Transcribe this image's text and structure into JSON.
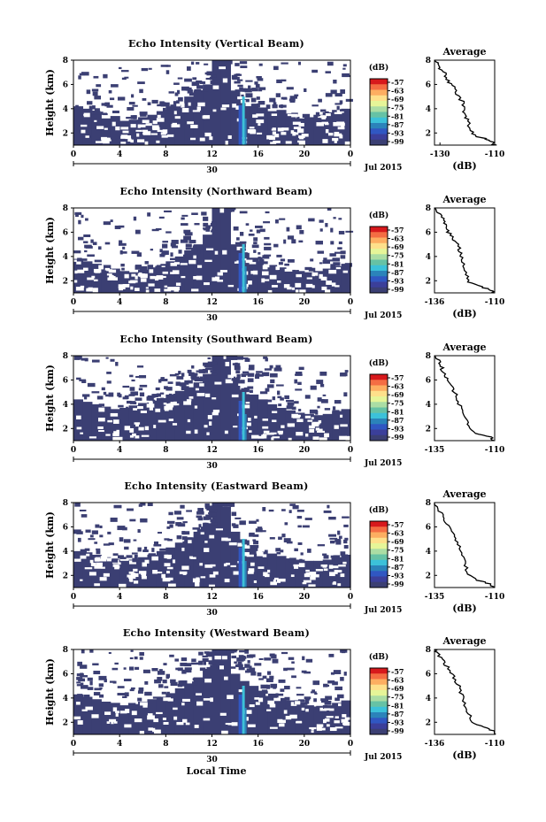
{
  "chart_data": [
    {
      "type": "heatmap",
      "title": "Echo Intensity (Vertical Beam)",
      "ylabel": "Height (km)",
      "x_ticks": [
        "0",
        "4",
        "8",
        "12",
        "16",
        "20",
        "0"
      ],
      "y_ticks": [
        "2",
        "4",
        "6",
        "8"
      ],
      "date_tick": "30",
      "date_label": "Jul 2015",
      "ylim": [
        1,
        8
      ],
      "colorbar": {
        "label": "(dB)",
        "ticks": [
          "-57",
          "-63",
          "-69",
          "-75",
          "-81",
          "-87",
          "-93",
          "-99"
        ],
        "range": [
          -99,
          -57
        ]
      },
      "average": {
        "title": "Average",
        "xlabel": "(dB)",
        "x_ticks": [
          "-130",
          "-110"
        ],
        "y_ticks": [
          "2",
          "4",
          "6",
          "8"
        ],
        "xlim": [
          -132,
          -110
        ],
        "ylim": [
          1,
          8
        ],
        "profile": [
          [
            -110,
            1.0
          ],
          [
            -111,
            1.3
          ],
          [
            -113,
            1.5
          ],
          [
            -117,
            1.7
          ],
          [
            -119,
            2.2
          ],
          [
            -120,
            3.0
          ],
          [
            -121,
            3.5
          ],
          [
            -121,
            4.0
          ],
          [
            -122,
            4.6
          ],
          [
            -124,
            5.2
          ],
          [
            -125,
            5.8
          ],
          [
            -127,
            6.3
          ],
          [
            -128,
            6.8
          ],
          [
            -130,
            7.3
          ],
          [
            -131,
            7.7
          ],
          [
            -132,
            8.0
          ]
        ]
      },
      "echo_top_km": [
        4.2,
        4.0,
        3.6,
        3.2,
        3.4,
        3.0,
        3.1,
        3.3,
        3.5,
        3.8,
        4.2,
        4.6,
        5.0,
        5.5,
        6.0,
        8.0,
        8.0,
        5.5,
        4.8,
        4.4,
        4.1,
        3.8,
        3.9,
        3.6,
        3.2,
        3.3,
        3.5,
        3.7,
        3.9,
        4.0
      ]
    },
    {
      "type": "heatmap",
      "title": "Echo Intensity (Northward Beam)",
      "ylabel": "Height (km)",
      "x_ticks": [
        "0",
        "4",
        "8",
        "12",
        "16",
        "20",
        "0"
      ],
      "y_ticks": [
        "2",
        "4",
        "6",
        "8"
      ],
      "date_tick": "30",
      "date_label": "Jul 2015",
      "ylim": [
        1,
        8
      ],
      "colorbar": {
        "label": "(dB)",
        "ticks": [
          "-57",
          "-63",
          "-69",
          "-75",
          "-81",
          "-87",
          "-93",
          "-99"
        ],
        "range": [
          -99,
          -57
        ]
      },
      "average": {
        "title": "Average",
        "xlabel": "(dB)",
        "x_ticks": [
          "-136",
          "-110"
        ],
        "y_ticks": [
          "2",
          "4",
          "6",
          "8"
        ],
        "xlim": [
          -136,
          -110
        ],
        "ylim": [
          1,
          8
        ],
        "profile": [
          [
            -110,
            1.0
          ],
          [
            -111,
            1.2
          ],
          [
            -116,
            1.5
          ],
          [
            -121,
            1.9
          ],
          [
            -122,
            2.5
          ],
          [
            -123,
            3.2
          ],
          [
            -124,
            3.9
          ],
          [
            -125,
            4.4
          ],
          [
            -126,
            5.0
          ],
          [
            -128,
            5.5
          ],
          [
            -130,
            6.0
          ],
          [
            -131,
            6.5
          ],
          [
            -132,
            7.0
          ],
          [
            -134,
            7.5
          ],
          [
            -136,
            8.0
          ]
        ]
      },
      "echo_top_km": [
        3.8,
        3.6,
        3.4,
        3.3,
        3.0,
        2.8,
        2.7,
        2.9,
        3.1,
        3.3,
        3.6,
        4.0,
        4.5,
        5.0,
        5.8,
        8.0,
        8.0,
        5.0,
        4.3,
        3.9,
        3.6,
        3.3,
        3.1,
        2.9,
        2.8,
        2.7,
        2.8,
        3.0,
        3.2,
        3.4
      ]
    },
    {
      "type": "heatmap",
      "title": "Echo Intensity (Southward Beam)",
      "ylabel": "Height (km)",
      "x_ticks": [
        "0",
        "4",
        "8",
        "12",
        "16",
        "20",
        "0"
      ],
      "y_ticks": [
        "2",
        "4",
        "6",
        "8"
      ],
      "date_tick": "30",
      "date_label": "Jul 2015",
      "ylim": [
        1,
        8
      ],
      "colorbar": {
        "label": "(dB)",
        "ticks": [
          "-57",
          "-63",
          "-69",
          "-75",
          "-81",
          "-87",
          "-93",
          "-99"
        ],
        "range": [
          -99,
          -57
        ]
      },
      "average": {
        "title": "Average",
        "xlabel": "",
        "x_ticks": [
          "-135",
          "-110"
        ],
        "y_ticks": [
          "2",
          "4",
          "6",
          "8"
        ],
        "xlim": [
          -135,
          -110
        ],
        "ylim": [
          1,
          8
        ],
        "profile": [
          [
            -110,
            1.0
          ],
          [
            -112,
            1.3
          ],
          [
            -118,
            1.6
          ],
          [
            -121,
            2.2
          ],
          [
            -122,
            2.8
          ],
          [
            -124,
            3.5
          ],
          [
            -125,
            4.2
          ],
          [
            -126,
            4.8
          ],
          [
            -128,
            5.4
          ],
          [
            -129,
            6.0
          ],
          [
            -131,
            6.5
          ],
          [
            -132,
            7.0
          ],
          [
            -133,
            7.5
          ],
          [
            -135,
            8.0
          ]
        ]
      },
      "echo_top_km": [
        4.4,
        4.2,
        4.0,
        3.8,
        3.6,
        3.7,
        3.9,
        4.1,
        4.3,
        4.5,
        4.8,
        5.1,
        5.4,
        5.8,
        6.5,
        8.0,
        8.0,
        6.0,
        5.2,
        4.8,
        4.4,
        4.0,
        3.7,
        3.5,
        3.3,
        3.2,
        3.1,
        3.2,
        3.4,
        3.6
      ]
    },
    {
      "type": "heatmap",
      "title": "Echo Intensity (Eastward Beam)",
      "ylabel": "Height (km)",
      "x_ticks": [
        "0",
        "4",
        "8",
        "12",
        "16",
        "20",
        "0"
      ],
      "y_ticks": [
        "2",
        "4",
        "6",
        "8"
      ],
      "date_tick": "30",
      "date_label": "Jul 2015",
      "ylim": [
        1,
        8
      ],
      "colorbar": {
        "label": "(dB)",
        "ticks": [
          "-57",
          "-63",
          "-69",
          "-75",
          "-81",
          "-87",
          "-93",
          "-99"
        ],
        "range": [
          -99,
          -57
        ]
      },
      "average": {
        "title": "Average",
        "xlabel": "(dB)",
        "x_ticks": [
          "-135",
          "-110"
        ],
        "y_ticks": [
          "2",
          "4",
          "6",
          "8"
        ],
        "xlim": [
          -135,
          -110
        ],
        "ylim": [
          1,
          8
        ],
        "profile": [
          [
            -110,
            1.0
          ],
          [
            -112,
            1.3
          ],
          [
            -117,
            1.6
          ],
          [
            -121,
            2.1
          ],
          [
            -122,
            2.8
          ],
          [
            -123,
            3.5
          ],
          [
            -124,
            4.2
          ],
          [
            -126,
            4.9
          ],
          [
            -127,
            5.5
          ],
          [
            -129,
            6.1
          ],
          [
            -131,
            6.7
          ],
          [
            -133,
            7.3
          ],
          [
            -135,
            8.0
          ]
        ]
      },
      "echo_top_km": [
        4.0,
        3.9,
        3.7,
        3.5,
        3.3,
        3.2,
        3.3,
        3.5,
        3.7,
        4.0,
        4.3,
        4.7,
        5.1,
        5.6,
        6.3,
        8.0,
        8.0,
        5.6,
        4.9,
        4.5,
        4.1,
        3.8,
        3.6,
        3.4,
        3.3,
        3.2,
        3.2,
        3.3,
        3.5,
        3.7
      ]
    },
    {
      "type": "heatmap",
      "title": "Echo Intensity (Westward Beam)",
      "ylabel": "Height (km)",
      "xlabel": "Local Time",
      "x_ticks": [
        "0",
        "4",
        "8",
        "12",
        "16",
        "20",
        "0"
      ],
      "y_ticks": [
        "2",
        "4",
        "6",
        "8"
      ],
      "date_tick": "30",
      "date_label": "Jul 2015",
      "ylim": [
        1,
        8
      ],
      "colorbar": {
        "label": "(dB)",
        "ticks": [
          "-57",
          "-63",
          "-69",
          "-75",
          "-81",
          "-87",
          "-93",
          "-99"
        ],
        "range": [
          -99,
          -57
        ]
      },
      "average": {
        "title": "Average",
        "xlabel": "(dB)",
        "x_ticks": [
          "-136",
          "-110"
        ],
        "y_ticks": [
          "2",
          "4",
          "6",
          "8"
        ],
        "xlim": [
          -136,
          -110
        ],
        "ylim": [
          1,
          8
        ],
        "profile": [
          [
            -110,
            1.0
          ],
          [
            -111,
            1.3
          ],
          [
            -115,
            1.6
          ],
          [
            -120,
            2.0
          ],
          [
            -121,
            2.7
          ],
          [
            -123,
            3.4
          ],
          [
            -124,
            4.1
          ],
          [
            -125,
            4.8
          ],
          [
            -127,
            5.5
          ],
          [
            -129,
            6.1
          ],
          [
            -131,
            6.7
          ],
          [
            -133,
            7.2
          ],
          [
            -135,
            7.7
          ],
          [
            -136,
            8.0
          ]
        ]
      },
      "echo_top_km": [
        4.3,
        4.1,
        3.9,
        3.7,
        3.6,
        3.4,
        3.5,
        3.7,
        3.9,
        4.1,
        4.4,
        4.8,
        5.2,
        5.7,
        6.4,
        8.0,
        8.0,
        6.0,
        5.4,
        5.0,
        4.6,
        4.3,
        4.0,
        3.8,
        3.6,
        3.4,
        3.3,
        3.4,
        3.6,
        3.8
      ]
    }
  ]
}
